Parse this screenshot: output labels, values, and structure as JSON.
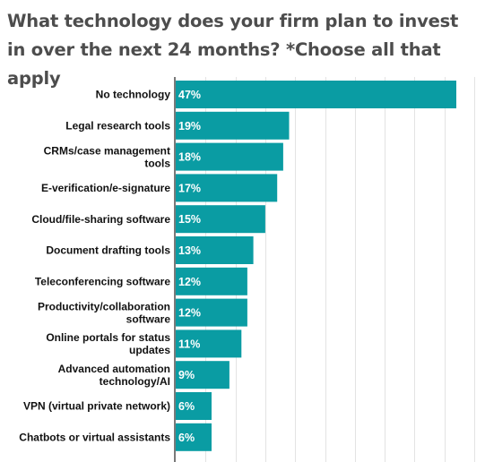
{
  "chart_data": {
    "type": "bar",
    "orientation": "horizontal",
    "title": "What technology does your firm plan to invest in over the next 24 months? *Choose all that apply",
    "categories": [
      "No technology",
      "Legal research tools",
      "CRMs/case management tools",
      "E-verification/e-signature",
      "Cloud/file-sharing software",
      "Document drafting tools",
      "Teleconferencing software",
      "Productivity/collaboration software",
      "Online portals for status updates",
      "Advanced automation technology/AI",
      "VPN (virtual private network)",
      "Chatbots or virtual assistants"
    ],
    "values": [
      47,
      19,
      18,
      17,
      15,
      13,
      12,
      12,
      11,
      9,
      6,
      6
    ],
    "data_labels": [
      "47%",
      "19%",
      "18%",
      "17%",
      "15%",
      "13%",
      "12%",
      "12%",
      "11%",
      "9%",
      "6%",
      "6%"
    ],
    "xlim": [
      0,
      50
    ],
    "grid": "vertical",
    "bar_color": "#0a9ca3",
    "grid_color": "#e3e3e3",
    "label_color": "#111111",
    "title_color": "#4d4d4d"
  }
}
